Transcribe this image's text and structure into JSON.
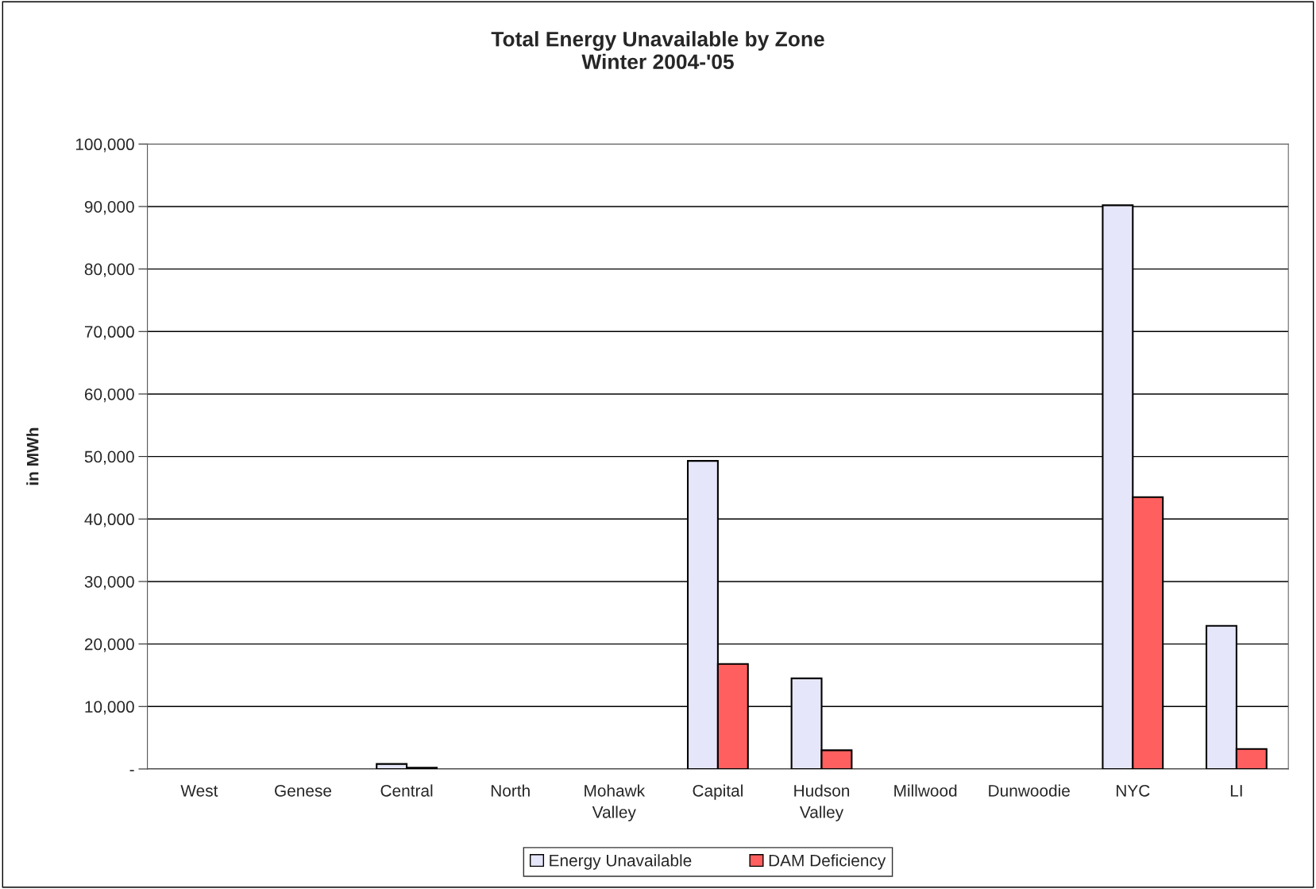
{
  "chart_data": {
    "type": "bar",
    "title": "Total Energy Unavailable by Zone\nWinter 2004-'05",
    "ylabel": "in MWh",
    "categories": [
      "West",
      "Genese",
      "Central",
      "North",
      "Mohawk\nValley",
      "Capital",
      "Hudson\nValley",
      "Millwood",
      "Dunwoodie",
      "NYC",
      "LI"
    ],
    "series": [
      {
        "name": "Energy Unavailable",
        "color": "#e6e6fa",
        "values": [
          0,
          0,
          800,
          0,
          0,
          49300,
          14500,
          0,
          0,
          90200,
          22900
        ]
      },
      {
        "name": "DAM Deficiency",
        "color": "#ff5f5f",
        "values": [
          0,
          0,
          200,
          0,
          0,
          16800,
          3000,
          0,
          0,
          43500,
          3200
        ]
      }
    ],
    "ylim": [
      0,
      100000
    ],
    "yticks": [
      {
        "value": 0,
        "label": "-"
      },
      {
        "value": 10000,
        "label": "10,000"
      },
      {
        "value": 20000,
        "label": "20,000"
      },
      {
        "value": 30000,
        "label": "30,000"
      },
      {
        "value": 40000,
        "label": "40,000"
      },
      {
        "value": 50000,
        "label": "50,000"
      },
      {
        "value": 60000,
        "label": "60,000"
      },
      {
        "value": 70000,
        "label": "70,000"
      },
      {
        "value": 80000,
        "label": "80,000"
      },
      {
        "value": 90000,
        "label": "90,000"
      },
      {
        "value": 100000,
        "label": "100,000"
      }
    ],
    "grid": "y",
    "legend": "bottom"
  }
}
